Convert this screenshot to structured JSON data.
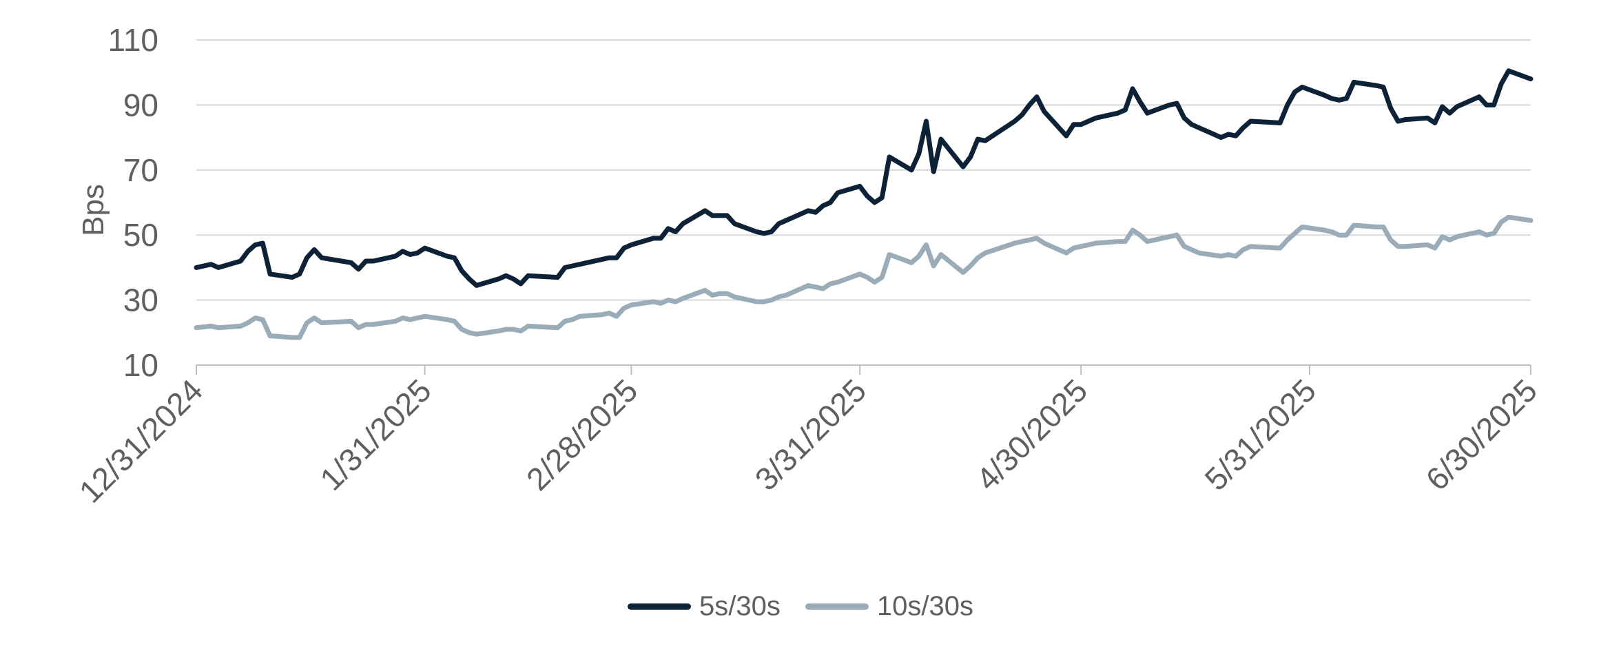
{
  "chart_data": {
    "type": "line",
    "ylabel": "Bps",
    "ylim": [
      10,
      110
    ],
    "yticks": [
      10,
      30,
      50,
      70,
      90,
      110
    ],
    "grid": true,
    "legend_position": "bottom-center",
    "x_tick_labels": [
      "12/31/2024",
      "1/31/2025",
      "2/28/2025",
      "3/31/2025",
      "4/30/2025",
      "5/31/2025",
      "6/30/2025"
    ],
    "x_tick_dates": [
      "2024-12-31",
      "2025-01-31",
      "2025-02-28",
      "2025-03-31",
      "2025-04-30",
      "2025-05-31",
      "2025-06-30"
    ],
    "series": [
      {
        "name": "5s/30s",
        "color": "#0d2236",
        "points": [
          [
            "2024-12-31",
            40
          ],
          [
            "2025-01-02",
            41
          ],
          [
            "2025-01-03",
            40
          ],
          [
            "2025-01-06",
            42
          ],
          [
            "2025-01-07",
            45
          ],
          [
            "2025-01-08",
            47
          ],
          [
            "2025-01-09",
            47.5
          ],
          [
            "2025-01-10",
            38
          ],
          [
            "2025-01-13",
            37
          ],
          [
            "2025-01-14",
            38
          ],
          [
            "2025-01-15",
            43
          ],
          [
            "2025-01-16",
            45.5
          ],
          [
            "2025-01-17",
            43
          ],
          [
            "2025-01-21",
            41.5
          ],
          [
            "2025-01-22",
            39.5
          ],
          [
            "2025-01-23",
            42
          ],
          [
            "2025-01-24",
            42
          ],
          [
            "2025-01-27",
            43.5
          ],
          [
            "2025-01-28",
            45
          ],
          [
            "2025-01-29",
            44
          ],
          [
            "2025-01-30",
            44.5
          ],
          [
            "2025-01-31",
            46
          ],
          [
            "2025-02-03",
            43.5
          ],
          [
            "2025-02-04",
            43
          ],
          [
            "2025-02-05",
            39
          ],
          [
            "2025-02-06",
            36.5
          ],
          [
            "2025-02-07",
            34.5
          ],
          [
            "2025-02-10",
            36.5
          ],
          [
            "2025-02-11",
            37.5
          ],
          [
            "2025-02-12",
            36.5
          ],
          [
            "2025-02-13",
            35
          ],
          [
            "2025-02-14",
            37.5
          ],
          [
            "2025-02-18",
            37
          ],
          [
            "2025-02-19",
            40
          ],
          [
            "2025-02-20",
            40.5
          ],
          [
            "2025-02-21",
            41
          ],
          [
            "2025-02-24",
            42.5
          ],
          [
            "2025-02-25",
            43
          ],
          [
            "2025-02-26",
            43
          ],
          [
            "2025-02-27",
            46
          ],
          [
            "2025-02-28",
            47
          ],
          [
            "2025-03-03",
            49
          ],
          [
            "2025-03-04",
            49
          ],
          [
            "2025-03-05",
            52
          ],
          [
            "2025-03-06",
            51
          ],
          [
            "2025-03-07",
            53.5
          ],
          [
            "2025-03-10",
            57.5
          ],
          [
            "2025-03-11",
            56
          ],
          [
            "2025-03-12",
            56
          ],
          [
            "2025-03-13",
            56
          ],
          [
            "2025-03-14",
            53.5
          ],
          [
            "2025-03-17",
            51
          ],
          [
            "2025-03-18",
            50.5
          ],
          [
            "2025-03-19",
            51
          ],
          [
            "2025-03-20",
            53.5
          ],
          [
            "2025-03-21",
            54.5
          ],
          [
            "2025-03-24",
            57.5
          ],
          [
            "2025-03-25",
            57
          ],
          [
            "2025-03-26",
            59
          ],
          [
            "2025-03-27",
            60
          ],
          [
            "2025-03-28",
            63
          ],
          [
            "2025-03-31",
            65
          ],
          [
            "2025-04-01",
            62
          ],
          [
            "2025-04-02",
            60
          ],
          [
            "2025-04-03",
            61.5
          ],
          [
            "2025-04-04",
            74
          ],
          [
            "2025-04-07",
            70
          ],
          [
            "2025-04-08",
            75
          ],
          [
            "2025-04-09",
            85
          ],
          [
            "2025-04-10",
            69.5
          ],
          [
            "2025-04-11",
            79.5
          ],
          [
            "2025-04-14",
            71
          ],
          [
            "2025-04-15",
            74
          ],
          [
            "2025-04-16",
            79.5
          ],
          [
            "2025-04-17",
            79
          ],
          [
            "2025-04-21",
            85
          ],
          [
            "2025-04-22",
            87
          ],
          [
            "2025-04-23",
            90
          ],
          [
            "2025-04-24",
            92.5
          ],
          [
            "2025-04-25",
            88
          ],
          [
            "2025-04-28",
            80.5
          ],
          [
            "2025-04-29",
            84
          ],
          [
            "2025-04-30",
            84
          ],
          [
            "2025-05-01",
            85
          ],
          [
            "2025-05-02",
            86
          ],
          [
            "2025-05-05",
            87.5
          ],
          [
            "2025-05-06",
            88.5
          ],
          [
            "2025-05-07",
            95
          ],
          [
            "2025-05-08",
            91
          ],
          [
            "2025-05-09",
            87.5
          ],
          [
            "2025-05-12",
            90
          ],
          [
            "2025-05-13",
            90.5
          ],
          [
            "2025-05-14",
            86
          ],
          [
            "2025-05-15",
            84
          ],
          [
            "2025-05-16",
            83
          ],
          [
            "2025-05-19",
            80
          ],
          [
            "2025-05-20",
            81
          ],
          [
            "2025-05-21",
            80.5
          ],
          [
            "2025-05-22",
            83
          ],
          [
            "2025-05-23",
            85
          ],
          [
            "2025-05-27",
            84.5
          ],
          [
            "2025-05-28",
            90
          ],
          [
            "2025-05-29",
            94
          ],
          [
            "2025-05-30",
            95.5
          ],
          [
            "2025-06-02",
            93
          ],
          [
            "2025-06-03",
            92
          ],
          [
            "2025-06-04",
            91.5
          ],
          [
            "2025-06-05",
            92
          ],
          [
            "2025-06-06",
            97
          ],
          [
            "2025-06-09",
            96
          ],
          [
            "2025-06-10",
            95.5
          ],
          [
            "2025-06-11",
            89
          ],
          [
            "2025-06-12",
            85
          ],
          [
            "2025-06-13",
            85.5
          ],
          [
            "2025-06-16",
            86
          ],
          [
            "2025-06-17",
            84.5
          ],
          [
            "2025-06-18",
            89.5
          ],
          [
            "2025-06-19",
            87.5
          ],
          [
            "2025-06-20",
            89.5
          ],
          [
            "2025-06-23",
            92.5
          ],
          [
            "2025-06-24",
            90
          ],
          [
            "2025-06-25",
            90
          ],
          [
            "2025-06-26",
            96.5
          ],
          [
            "2025-06-27",
            100.5
          ],
          [
            "2025-06-30",
            98
          ]
        ]
      },
      {
        "name": "10s/30s",
        "color": "#9aacb8",
        "points": [
          [
            "2024-12-31",
            21.5
          ],
          [
            "2025-01-02",
            22
          ],
          [
            "2025-01-03",
            21.5
          ],
          [
            "2025-01-06",
            22
          ],
          [
            "2025-01-07",
            23
          ],
          [
            "2025-01-08",
            24.5
          ],
          [
            "2025-01-09",
            24
          ],
          [
            "2025-01-10",
            19
          ],
          [
            "2025-01-13",
            18.5
          ],
          [
            "2025-01-14",
            18.5
          ],
          [
            "2025-01-15",
            23
          ],
          [
            "2025-01-16",
            24.5
          ],
          [
            "2025-01-17",
            23
          ],
          [
            "2025-01-21",
            23.5
          ],
          [
            "2025-01-22",
            21.5
          ],
          [
            "2025-01-23",
            22.5
          ],
          [
            "2025-01-24",
            22.5
          ],
          [
            "2025-01-27",
            23.5
          ],
          [
            "2025-01-28",
            24.5
          ],
          [
            "2025-01-29",
            24
          ],
          [
            "2025-01-30",
            24.5
          ],
          [
            "2025-01-31",
            25
          ],
          [
            "2025-02-03",
            24
          ],
          [
            "2025-02-04",
            23.5
          ],
          [
            "2025-02-05",
            21
          ],
          [
            "2025-02-06",
            20
          ],
          [
            "2025-02-07",
            19.5
          ],
          [
            "2025-02-10",
            20.5
          ],
          [
            "2025-02-11",
            21
          ],
          [
            "2025-02-12",
            21
          ],
          [
            "2025-02-13",
            20.5
          ],
          [
            "2025-02-14",
            22
          ],
          [
            "2025-02-18",
            21.5
          ],
          [
            "2025-02-19",
            23.5
          ],
          [
            "2025-02-20",
            24
          ],
          [
            "2025-02-21",
            25
          ],
          [
            "2025-02-24",
            25.5
          ],
          [
            "2025-02-25",
            26
          ],
          [
            "2025-02-26",
            25
          ],
          [
            "2025-02-27",
            27.5
          ],
          [
            "2025-02-28",
            28.5
          ],
          [
            "2025-03-03",
            29.5
          ],
          [
            "2025-03-04",
            29
          ],
          [
            "2025-03-05",
            30
          ],
          [
            "2025-03-06",
            29.5
          ],
          [
            "2025-03-07",
            30.5
          ],
          [
            "2025-03-10",
            33
          ],
          [
            "2025-03-11",
            31.5
          ],
          [
            "2025-03-12",
            32
          ],
          [
            "2025-03-13",
            32
          ],
          [
            "2025-03-14",
            31
          ],
          [
            "2025-03-17",
            29.5
          ],
          [
            "2025-03-18",
            29.5
          ],
          [
            "2025-03-19",
            30
          ],
          [
            "2025-03-20",
            31
          ],
          [
            "2025-03-21",
            31.5
          ],
          [
            "2025-03-24",
            34.5
          ],
          [
            "2025-03-25",
            34
          ],
          [
            "2025-03-26",
            33.5
          ],
          [
            "2025-03-27",
            35
          ],
          [
            "2025-03-28",
            35.5
          ],
          [
            "2025-03-31",
            38
          ],
          [
            "2025-04-01",
            37
          ],
          [
            "2025-04-02",
            35.5
          ],
          [
            "2025-04-03",
            37
          ],
          [
            "2025-04-04",
            44
          ],
          [
            "2025-04-07",
            41.5
          ],
          [
            "2025-04-08",
            43.5
          ],
          [
            "2025-04-09",
            47
          ],
          [
            "2025-04-10",
            40.5
          ],
          [
            "2025-04-11",
            44
          ],
          [
            "2025-04-14",
            38.5
          ],
          [
            "2025-04-15",
            40.5
          ],
          [
            "2025-04-16",
            43
          ],
          [
            "2025-04-17",
            44.5
          ],
          [
            "2025-04-21",
            47.5
          ],
          [
            "2025-04-22",
            48
          ],
          [
            "2025-04-23",
            48.5
          ],
          [
            "2025-04-24",
            49
          ],
          [
            "2025-04-25",
            47.5
          ],
          [
            "2025-04-28",
            44.5
          ],
          [
            "2025-04-29",
            46
          ],
          [
            "2025-04-30",
            46.5
          ],
          [
            "2025-05-01",
            47
          ],
          [
            "2025-05-02",
            47.5
          ],
          [
            "2025-05-05",
            48
          ],
          [
            "2025-05-06",
            48
          ],
          [
            "2025-05-07",
            51.5
          ],
          [
            "2025-05-08",
            50
          ],
          [
            "2025-05-09",
            48
          ],
          [
            "2025-05-12",
            49.5
          ],
          [
            "2025-05-13",
            50
          ],
          [
            "2025-05-14",
            46.5
          ],
          [
            "2025-05-15",
            45.5
          ],
          [
            "2025-05-16",
            44.5
          ],
          [
            "2025-05-19",
            43.5
          ],
          [
            "2025-05-20",
            44
          ],
          [
            "2025-05-21",
            43.5
          ],
          [
            "2025-05-22",
            45.5
          ],
          [
            "2025-05-23",
            46.5
          ],
          [
            "2025-05-27",
            46
          ],
          [
            "2025-05-28",
            48.5
          ],
          [
            "2025-05-29",
            50.5
          ],
          [
            "2025-05-30",
            52.5
          ],
          [
            "2025-06-02",
            51.5
          ],
          [
            "2025-06-03",
            51
          ],
          [
            "2025-06-04",
            50
          ],
          [
            "2025-06-05",
            50
          ],
          [
            "2025-06-06",
            53
          ],
          [
            "2025-06-09",
            52.5
          ],
          [
            "2025-06-10",
            52.5
          ],
          [
            "2025-06-11",
            48.5
          ],
          [
            "2025-06-12",
            46.5
          ],
          [
            "2025-06-13",
            46.5
          ],
          [
            "2025-06-16",
            47
          ],
          [
            "2025-06-17",
            46
          ],
          [
            "2025-06-18",
            49.5
          ],
          [
            "2025-06-19",
            48.5
          ],
          [
            "2025-06-20",
            49.5
          ],
          [
            "2025-06-23",
            51
          ],
          [
            "2025-06-24",
            50
          ],
          [
            "2025-06-25",
            50.5
          ],
          [
            "2025-06-26",
            54
          ],
          [
            "2025-06-27",
            55.5
          ],
          [
            "2025-06-30",
            54.5
          ]
        ]
      }
    ]
  }
}
